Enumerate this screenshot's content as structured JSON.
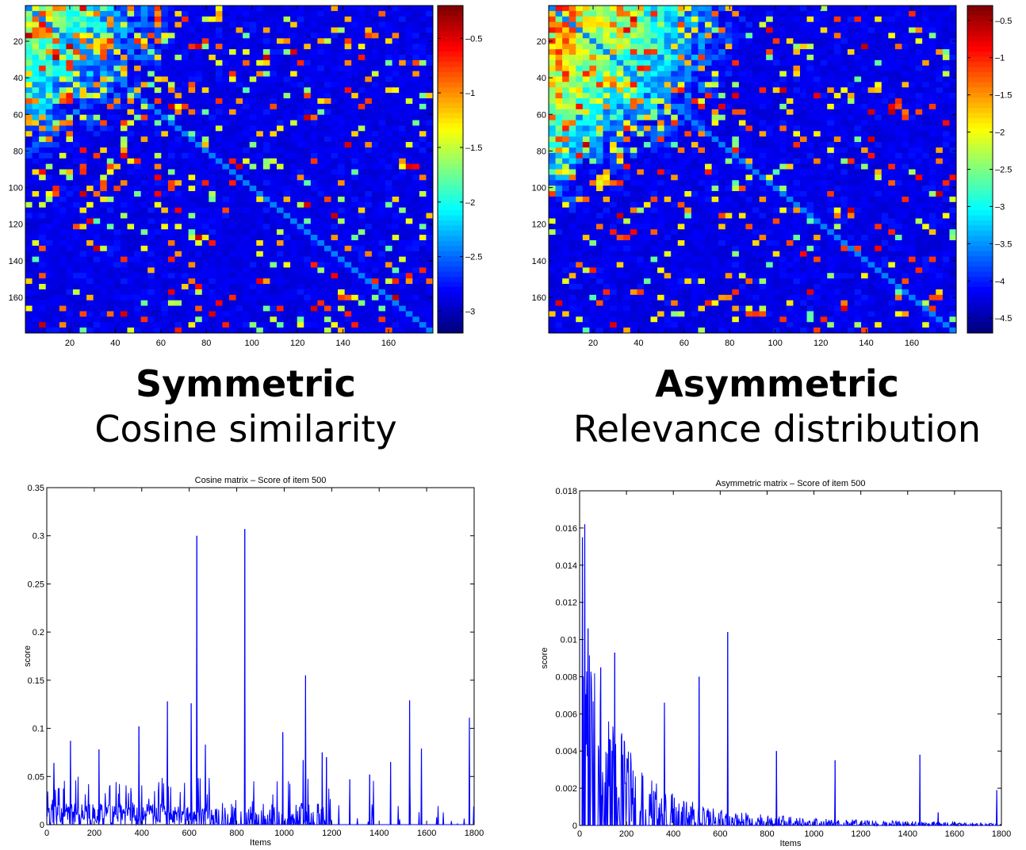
{
  "captions": {
    "left_title": "Symmetric",
    "left_subtitle": "Cosine similarity",
    "right_title": "Asymmetric",
    "right_subtitle": "Relevance distribution"
  },
  "chart_data": [
    {
      "type": "heatmap",
      "title": "",
      "xlim": [
        1,
        179
      ],
      "ylim": [
        1,
        179
      ],
      "x_ticks": [
        20,
        40,
        60,
        80,
        100,
        120,
        140,
        160
      ],
      "y_ticks": [
        20,
        40,
        60,
        80,
        100,
        120,
        140,
        160
      ],
      "colorbar": {
        "clim": [
          -3.2,
          -0.2
        ],
        "ticks": [
          "-0.5",
          "-1",
          "-1.5",
          "-2",
          "-2.5",
          "-3"
        ],
        "tick_values": [
          -0.5,
          -1,
          -1.5,
          -2,
          -2.5,
          -3
        ]
      },
      "colormap": "jet",
      "grid": false
    },
    {
      "type": "heatmap",
      "title": "",
      "xlim": [
        1,
        179
      ],
      "ylim": [
        1,
        179
      ],
      "x_ticks": [
        20,
        40,
        60,
        80,
        100,
        120,
        140,
        160
      ],
      "y_ticks": [
        20,
        40,
        60,
        80,
        100,
        120,
        140,
        160
      ],
      "colorbar": {
        "clim": [
          -4.7,
          -0.3
        ],
        "ticks": [
          "-0.5",
          "-1",
          "-1.5",
          "-2",
          "-2.5",
          "-3",
          "-3.5",
          "-4",
          "-4.5"
        ],
        "tick_values": [
          -0.5,
          -1,
          -1.5,
          -2,
          -2.5,
          -3,
          -3.5,
          -4,
          -4.5
        ]
      },
      "colormap": "jet",
      "grid": false
    },
    {
      "type": "line",
      "title": "Cosine matrix – Score of item 500",
      "xlabel": "Items",
      "ylabel": "score",
      "xlim": [
        0,
        1800
      ],
      "ylim": [
        0,
        0.35
      ],
      "x_ticks": [
        "0",
        "200",
        "400",
        "600",
        "800",
        "1000",
        "1200",
        "1400",
        "1600",
        "1800"
      ],
      "y_ticks": [
        "0",
        "0.05",
        "0.1",
        "0.15",
        "0.2",
        "0.25",
        "0.3",
        "0.35"
      ],
      "grid": false,
      "color": "#0000ff",
      "peaks": [
        {
          "x": 632,
          "y": 0.3
        },
        {
          "x": 834,
          "y": 0.307
        },
        {
          "x": 1090,
          "y": 0.155
        },
        {
          "x": 1528,
          "y": 0.129
        },
        {
          "x": 508,
          "y": 0.128
        },
        {
          "x": 608,
          "y": 0.126
        },
        {
          "x": 1780,
          "y": 0.111
        },
        {
          "x": 388,
          "y": 0.102
        },
        {
          "x": 994,
          "y": 0.096
        },
        {
          "x": 100,
          "y": 0.087
        },
        {
          "x": 668,
          "y": 0.083
        },
        {
          "x": 1578,
          "y": 0.079
        },
        {
          "x": 220,
          "y": 0.078
        },
        {
          "x": 1160,
          "y": 0.075
        },
        {
          "x": 1080,
          "y": 0.067
        },
        {
          "x": 1178,
          "y": 0.07
        },
        {
          "x": 1448,
          "y": 0.065
        },
        {
          "x": 30,
          "y": 0.064
        },
        {
          "x": 1360,
          "y": 0.052
        },
        {
          "x": 1276,
          "y": 0.047
        }
      ]
    },
    {
      "type": "line",
      "title": "Asymmetric matrix – Score of item 500",
      "xlabel": "Items",
      "ylabel": "score",
      "xlim": [
        0,
        1800
      ],
      "ylim": [
        0,
        0.018
      ],
      "x_ticks": [
        "0",
        "200",
        "400",
        "600",
        "800",
        "1000",
        "1200",
        "1400",
        "1600",
        "1800"
      ],
      "y_ticks": [
        "0",
        "0.002",
        "0.004",
        "0.006",
        "0.008",
        "0.01",
        "0.012",
        "0.014",
        "0.016",
        "0.018"
      ],
      "grid": false,
      "color": "#0000ff",
      "peaks": [
        {
          "x": 22,
          "y": 0.0162
        },
        {
          "x": 12,
          "y": 0.0155
        },
        {
          "x": 36,
          "y": 0.0106
        },
        {
          "x": 632,
          "y": 0.0104
        },
        {
          "x": 150,
          "y": 0.0093
        },
        {
          "x": 510,
          "y": 0.008
        },
        {
          "x": 90,
          "y": 0.0085
        },
        {
          "x": 362,
          "y": 0.0066
        },
        {
          "x": 840,
          "y": 0.004
        },
        {
          "x": 1090,
          "y": 0.0035
        },
        {
          "x": 1452,
          "y": 0.0038
        },
        {
          "x": 1780,
          "y": 0.0019
        },
        {
          "x": 1530,
          "y": 0.0007
        }
      ]
    }
  ]
}
